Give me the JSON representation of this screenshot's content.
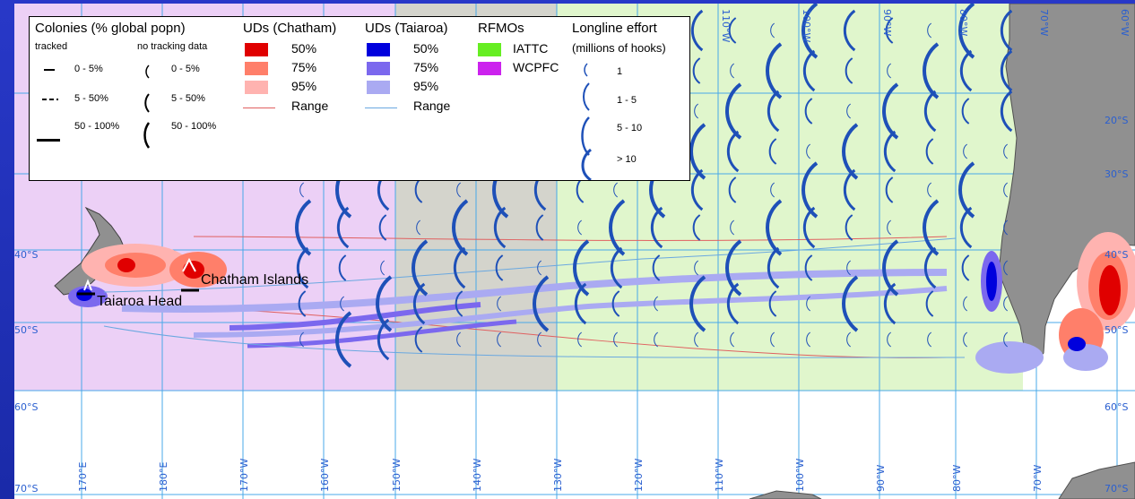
{
  "map": {
    "places": {
      "chatham": "Chatham Islands",
      "taiaroa": "Taiaroa Head"
    },
    "lat_labels": [
      "20°S",
      "30°S",
      "40°S",
      "40°S",
      "50°S",
      "50°S",
      "60°S",
      "60°S",
      "70°S",
      "70°S"
    ],
    "lon_labels": [
      "170°E",
      "180°E",
      "170°W",
      "160°W",
      "150°W",
      "140°W",
      "130°W",
      "120°W",
      "110°W",
      "100°W",
      "90°W",
      "80°W",
      "70°W",
      "110°W",
      "100°W",
      "90°W",
      "80°W",
      "70°W",
      "60°W"
    ]
  },
  "legend": {
    "colonies": {
      "title": "Colonies  (% global popn)",
      "tracked": "tracked",
      "no_tracking": "no tracking data",
      "ranges": [
        "0 - 5%",
        "5 - 50%",
        "50 - 100%"
      ]
    },
    "ud_chatham": {
      "title": "UDs (Chatham)",
      "items": [
        "50%",
        "75%",
        "95%",
        "Range"
      ],
      "colors": [
        "#e00000",
        "#ff7f6a",
        "#ffb3b0",
        "#e06060"
      ]
    },
    "ud_taiaroa": {
      "title": "UDs (Taiaroa)",
      "items": [
        "50%",
        "75%",
        "95%",
        "Range"
      ],
      "colors": [
        "#0000dd",
        "#7b68ee",
        "#aaaaf2",
        "#6aa8e0"
      ]
    },
    "rfmos": {
      "title": "RFMOs",
      "items": [
        "IATTC",
        "WCPFC"
      ],
      "colors": [
        "#66ee22",
        "#cc22ee"
      ]
    },
    "longline": {
      "title": "Longline effort",
      "subtitle": "(millions of hooks)",
      "items": [
        "1",
        "1 - 5",
        "5 - 10",
        "> 10"
      ]
    }
  }
}
